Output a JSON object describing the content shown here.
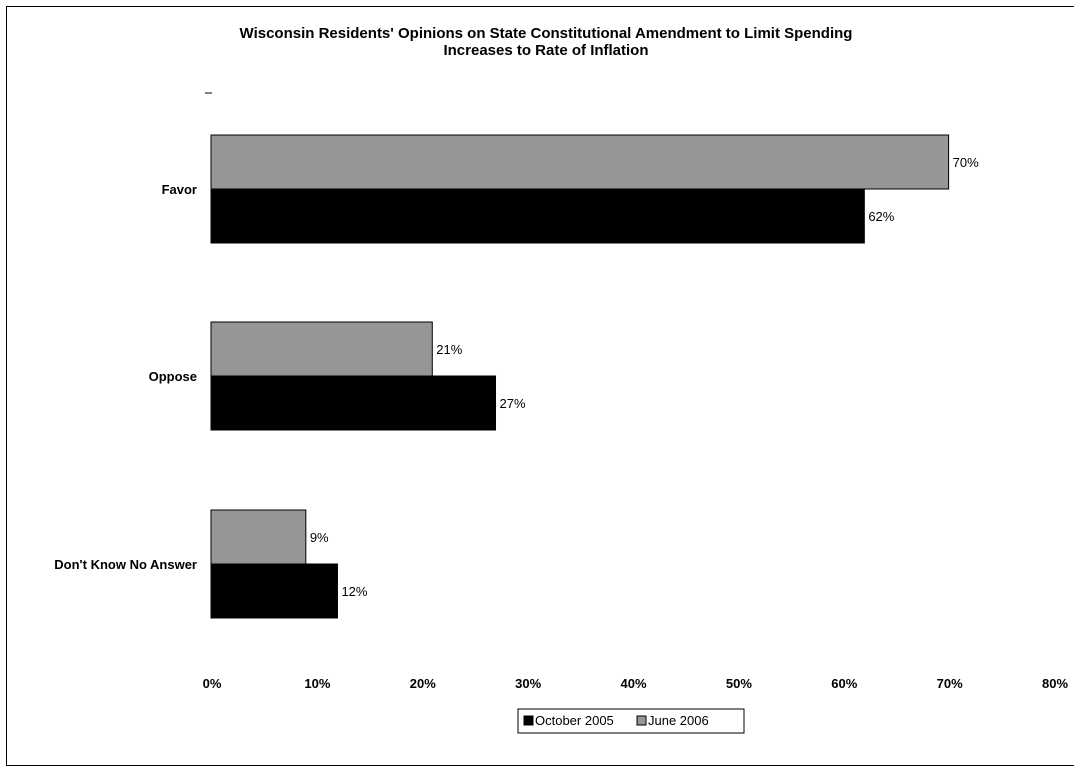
{
  "chart_data": {
    "type": "bar",
    "orientation": "horizontal",
    "title_lines": [
      "Wisconsin Residents' Opinions on State Constitutional Amendment to Limit Spending",
      "Increases to Rate of Inflation"
    ],
    "categories": [
      "Favor",
      "Oppose",
      "Don't Know No Answer"
    ],
    "series": [
      {
        "name": "June 2006",
        "color": "#969696",
        "values": [
          70,
          21,
          9
        ],
        "labels": [
          "70%",
          "21%",
          "9%"
        ]
      },
      {
        "name": "October 2005",
        "color": "#000000",
        "values": [
          62,
          27,
          12
        ],
        "labels": [
          "62%",
          "27%",
          "12%"
        ]
      }
    ],
    "xlim": [
      0,
      80
    ],
    "xticks": [
      0,
      10,
      20,
      30,
      40,
      50,
      60,
      70,
      80
    ],
    "xtick_labels": [
      "0%",
      "10%",
      "20%",
      "30%",
      "40%",
      "50%",
      "60%",
      "70%",
      "80%"
    ],
    "legend": {
      "placement": "bottom",
      "entries": [
        {
          "name": "October 2005",
          "color": "#000000"
        },
        {
          "name": "June 2006",
          "color": "#969696"
        }
      ]
    },
    "grid": false
  }
}
